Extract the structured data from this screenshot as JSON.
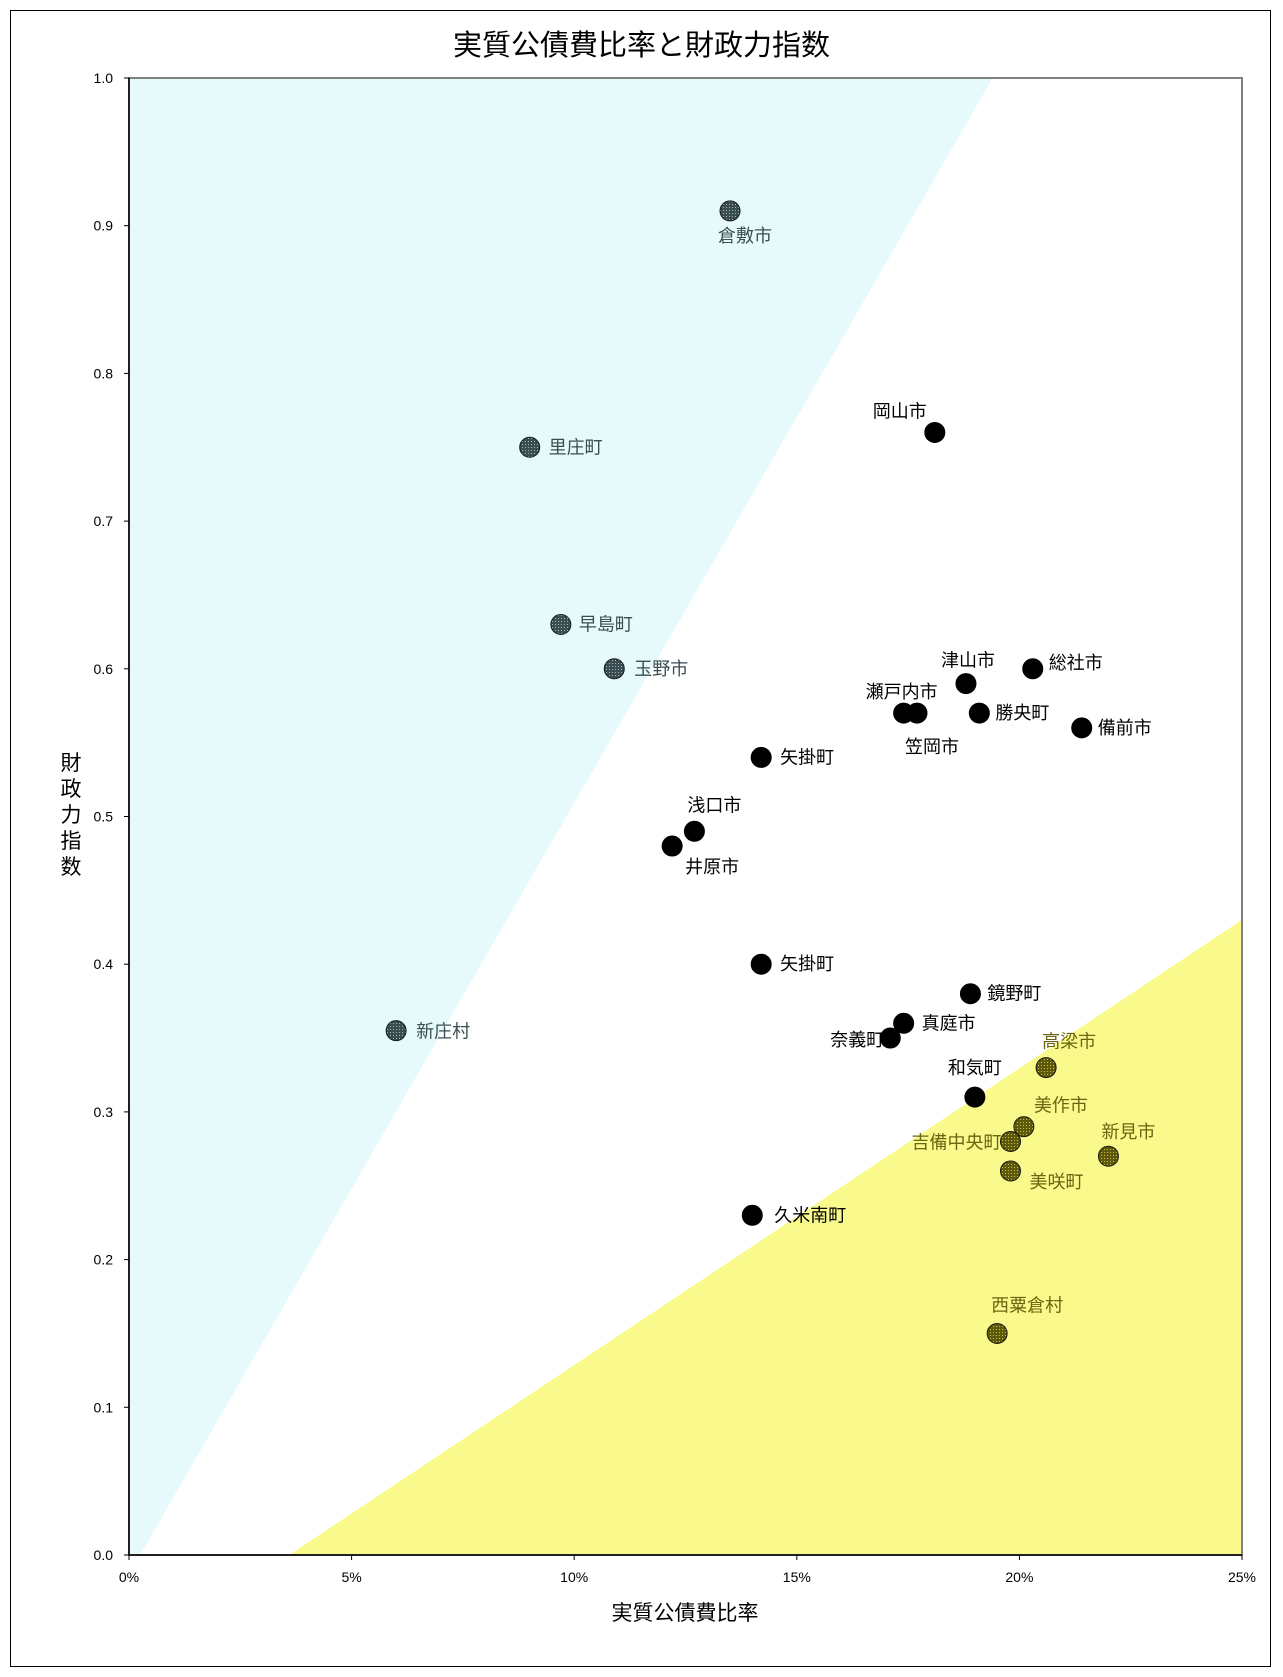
{
  "title": "実質公債費比率と財政力指数",
  "chart_data": {
    "type": "scatter",
    "title": "実質公債費比率と財政力指数",
    "xlabel": "実質公債費比率",
    "ylabel": "財政力指数",
    "xlim": [
      0,
      25
    ],
    "ylim": [
      0,
      1.0
    ],
    "x_unit": "%",
    "x_ticks": [
      "0%",
      "5%",
      "10%",
      "15%",
      "20%",
      "25%"
    ],
    "y_ticks": [
      "0.0",
      "0.1",
      "0.2",
      "0.3",
      "0.4",
      "0.5",
      "0.6",
      "0.7",
      "0.8",
      "0.9",
      "1.0"
    ],
    "grid": false,
    "regions": [
      {
        "zone": "upper-left",
        "color": "#e6fafc",
        "boundary_from": [
          0.25,
          0
        ],
        "boundary_to": [
          19.4,
          1.0
        ]
      },
      {
        "zone": "lower-right",
        "color": "#fafa8c",
        "boundary_from": [
          3.6,
          0
        ],
        "boundary_to": [
          25,
          0.43
        ]
      }
    ],
    "colors": {
      "dark": "#000000",
      "cyan_zone": "#3a4e52",
      "yellow_zone": "#6b6410"
    },
    "points": [
      {
        "name": "倉敷市",
        "x": 13.5,
        "y": 0.91,
        "zone": "cyan"
      },
      {
        "name": "里庄町",
        "x": 9.0,
        "y": 0.75,
        "zone": "cyan"
      },
      {
        "name": "早島町",
        "x": 9.7,
        "y": 0.63,
        "zone": "cyan"
      },
      {
        "name": "玉野市",
        "x": 10.9,
        "y": 0.6,
        "zone": "cyan"
      },
      {
        "name": "新庄村",
        "x": 6.0,
        "y": 0.355,
        "zone": "cyan"
      },
      {
        "name": "岡山市",
        "x": 18.1,
        "y": 0.76,
        "zone": "none"
      },
      {
        "name": "津山市",
        "x": 18.8,
        "y": 0.59,
        "zone": "none"
      },
      {
        "name": "総社市",
        "x": 20.3,
        "y": 0.6,
        "zone": "none"
      },
      {
        "name": "瀬戸内市",
        "x": 17.4,
        "y": 0.57,
        "zone": "none"
      },
      {
        "name": "笠岡市",
        "x": 17.7,
        "y": 0.57,
        "zone": "none"
      },
      {
        "name": "勝央町",
        "x": 19.1,
        "y": 0.57,
        "zone": "none"
      },
      {
        "name": "備前市",
        "x": 21.4,
        "y": 0.56,
        "zone": "none"
      },
      {
        "name": "矢掛町",
        "x": 14.2,
        "y": 0.54,
        "zone": "none"
      },
      {
        "name": "浅口市",
        "x": 12.7,
        "y": 0.49,
        "zone": "none"
      },
      {
        "name": "井原市",
        "x": 12.2,
        "y": 0.48,
        "zone": "none"
      },
      {
        "name": "矢掛町",
        "x": 14.2,
        "y": 0.4,
        "zone": "none"
      },
      {
        "name": "鏡野町",
        "x": 18.9,
        "y": 0.38,
        "zone": "none"
      },
      {
        "name": "真庭市",
        "x": 17.4,
        "y": 0.36,
        "zone": "none"
      },
      {
        "name": "奈義町",
        "x": 17.1,
        "y": 0.35,
        "zone": "none"
      },
      {
        "name": "和気町",
        "x": 19.0,
        "y": 0.31,
        "zone": "none"
      },
      {
        "name": "久米南町",
        "x": 14.0,
        "y": 0.23,
        "zone": "none"
      },
      {
        "name": "高梁市",
        "x": 20.6,
        "y": 0.33,
        "zone": "yellow"
      },
      {
        "name": "美作市",
        "x": 20.1,
        "y": 0.29,
        "zone": "yellow"
      },
      {
        "name": "吉備中央町",
        "x": 19.8,
        "y": 0.28,
        "zone": "yellow"
      },
      {
        "name": "新見市",
        "x": 22.0,
        "y": 0.27,
        "zone": "yellow"
      },
      {
        "name": "美咲町",
        "x": 19.8,
        "y": 0.26,
        "zone": "yellow"
      },
      {
        "name": "西粟倉村",
        "x": 19.5,
        "y": 0.15,
        "zone": "yellow"
      }
    ]
  }
}
